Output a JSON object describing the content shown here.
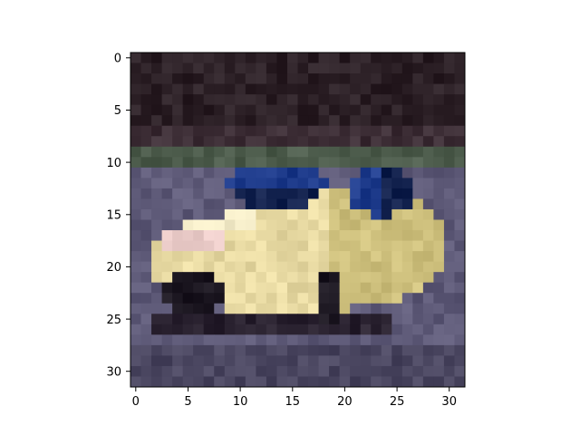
{
  "image": {
    "description": "",
    "grid_size": 32,
    "x_ticks": [
      "0",
      "5",
      "10",
      "15",
      "20",
      "25",
      "30"
    ],
    "y_ticks": [
      "0",
      "5",
      "10",
      "15",
      "20",
      "25",
      "30"
    ],
    "palette": {
      "sky_dark": "#2c2026",
      "sky_mid": "#3d2e36",
      "hedge": "#4d5c4c",
      "road": "#5e5a78",
      "road_dark": "#4a4660",
      "car_body": "#e7d9a2",
      "car_body_light": "#f1e9c6",
      "car_shade": "#cdbf7c",
      "car_pink": "#e8c9c6",
      "window": "#1f3c8c",
      "window_dark": "#13224e",
      "tire": "#1b1620",
      "shadow": "#2a2230"
    }
  }
}
